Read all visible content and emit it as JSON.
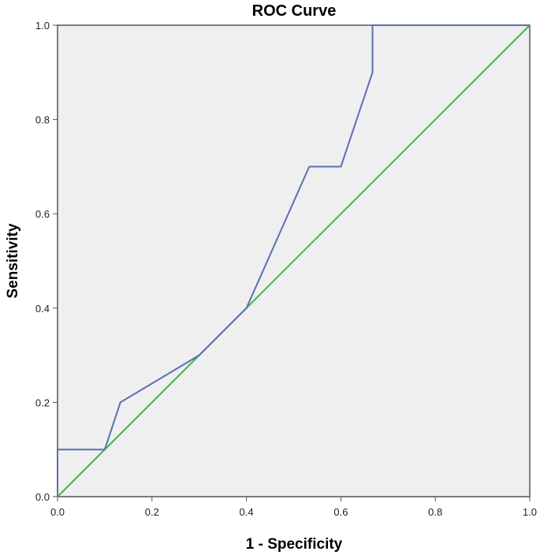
{
  "chart_data": {
    "type": "line",
    "title": "ROC Curve",
    "xlabel": "1 - Specificity",
    "ylabel": "Sensitivity",
    "xlim": [
      0,
      1
    ],
    "ylim": [
      0,
      1
    ],
    "x_ticks": [
      "0.0",
      "0.2",
      "0.4",
      "0.6",
      "0.8",
      "1.0"
    ],
    "y_ticks": [
      "0.0",
      "0.2",
      "0.4",
      "0.6",
      "0.8",
      "1.0"
    ],
    "grid": false,
    "legend": "none",
    "series": [
      {
        "color": "#5b6fb4",
        "x": [
          0,
          0,
          0.1,
          0.133,
          0.3,
          0.4,
          0.533,
          0.6,
          0.667,
          0.667,
          1.0
        ],
        "y": [
          0,
          0.1,
          0.1,
          0.2,
          0.3,
          0.4,
          0.7,
          0.7,
          0.9,
          1.0,
          1.0
        ]
      },
      {
        "color": "#3fb84a",
        "x": [
          0,
          1
        ],
        "y": [
          0,
          1
        ]
      }
    ],
    "plot_background": "#efefef"
  }
}
